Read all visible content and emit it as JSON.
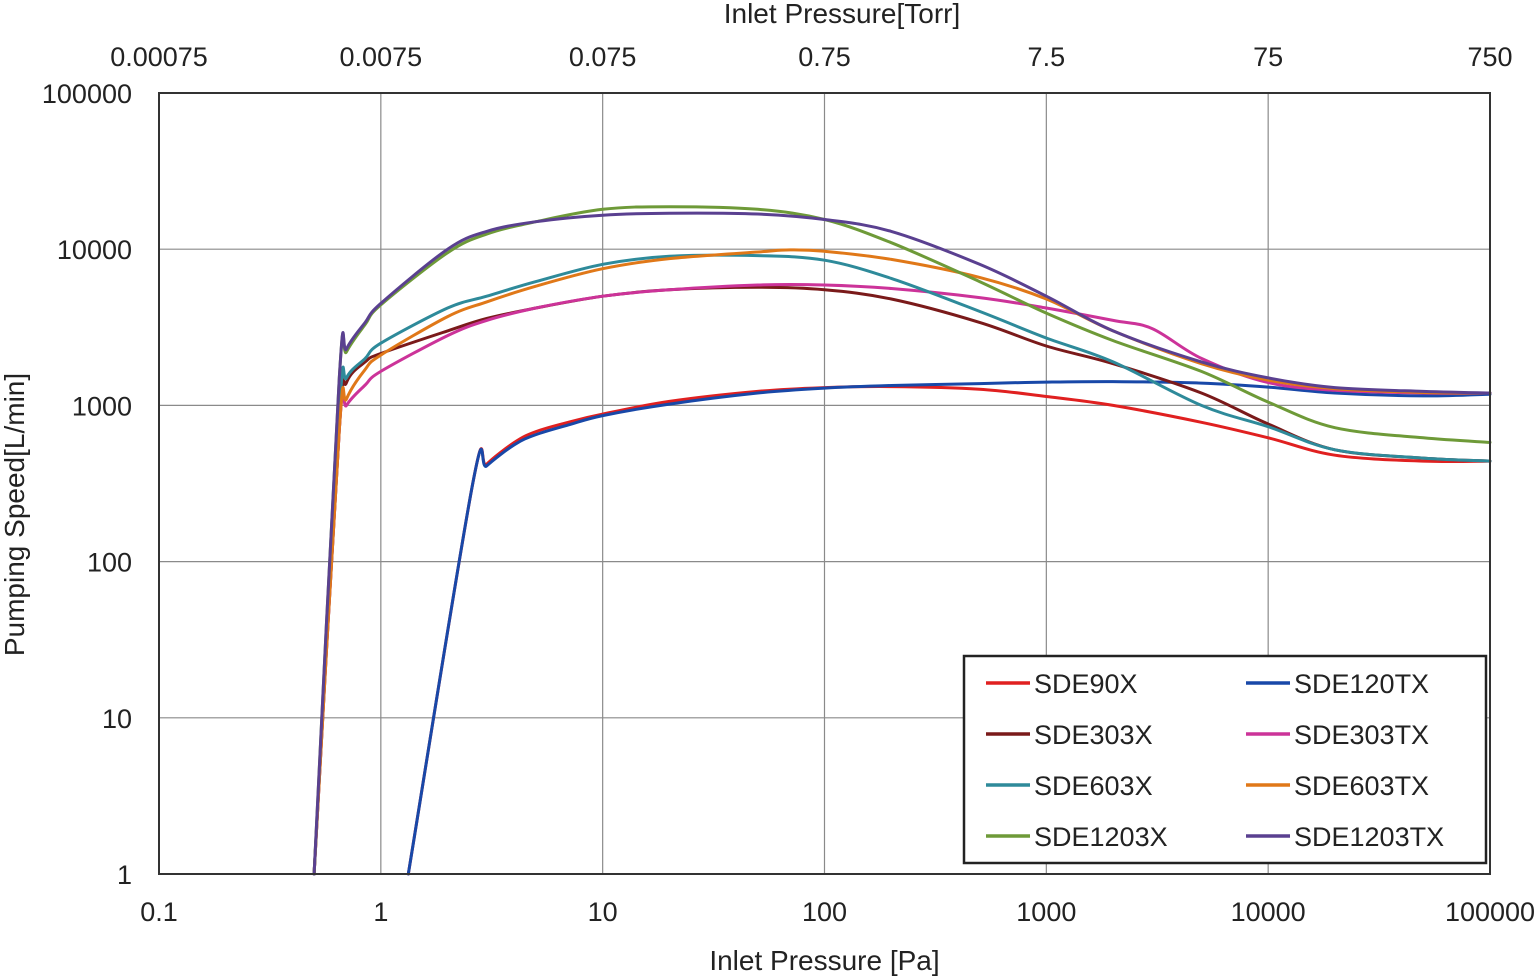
{
  "chart_data": {
    "type": "line",
    "xlabel": "Inlet Pressure [Pa]",
    "x2label": "Inlet Pressure[Torr]",
    "ylabel": "Pumping Speed[L/min]",
    "x_scale": "log",
    "y_scale": "log",
    "xlim": [
      0.1,
      100000
    ],
    "ylim": [
      1,
      100000
    ],
    "grid": true,
    "legend_position": "bottom-right",
    "x_ticks": [
      {
        "value": 0.1,
        "label": "0.1"
      },
      {
        "value": 1,
        "label": "1"
      },
      {
        "value": 10,
        "label": "10"
      },
      {
        "value": 100,
        "label": "100"
      },
      {
        "value": 1000,
        "label": "1000"
      },
      {
        "value": 10000,
        "label": "10000"
      },
      {
        "value": 100000,
        "label": "100000"
      }
    ],
    "x2_ticks": [
      {
        "value": 0.1,
        "label": "0.00075"
      },
      {
        "value": 1,
        "label": "0.0075"
      },
      {
        "value": 10,
        "label": "0.075"
      },
      {
        "value": 100,
        "label": "0.75"
      },
      {
        "value": 1000,
        "label": "7.5"
      },
      {
        "value": 10000,
        "label": "75"
      },
      {
        "value": 100000,
        "label": "750"
      }
    ],
    "y_ticks": [
      {
        "value": 1,
        "label": "1"
      },
      {
        "value": 10,
        "label": "10"
      },
      {
        "value": 100,
        "label": "100"
      },
      {
        "value": 1000,
        "label": "1000"
      },
      {
        "value": 10000,
        "label": "10000"
      },
      {
        "value": 100000,
        "label": "100000"
      }
    ],
    "series": [
      {
        "name": "SDE90X",
        "color": "#e02020",
        "x": [
          1.33,
          2.6,
          3,
          4,
          5,
          7,
          10,
          20,
          50,
          100,
          200,
          500,
          1000,
          2000,
          5000,
          10000,
          20000,
          50000,
          100000
        ],
        "y": [
          1,
          320,
          420,
          580,
          680,
          780,
          880,
          1060,
          1230,
          1300,
          1320,
          1270,
          1140,
          1000,
          780,
          620,
          480,
          440,
          440
        ]
      },
      {
        "name": "SDE120TX",
        "color": "#1848a8",
        "x": [
          1.33,
          2.6,
          3,
          4,
          5,
          7,
          10,
          20,
          50,
          100,
          200,
          500,
          1000,
          2000,
          5000,
          10000,
          20000,
          50000,
          100000
        ],
        "y": [
          1,
          320,
          410,
          560,
          650,
          750,
          860,
          1020,
          1200,
          1290,
          1340,
          1380,
          1410,
          1420,
          1390,
          1310,
          1200,
          1150,
          1180
        ]
      },
      {
        "name": "SDE303X",
        "color": "#7a1a1a",
        "x": [
          0.5,
          0.65,
          0.7,
          0.85,
          1,
          2,
          3,
          5,
          10,
          20,
          50,
          100,
          200,
          500,
          1000,
          2000,
          5000,
          10000,
          20000,
          50000,
          100000
        ],
        "y": [
          1,
          700,
          1400,
          1900,
          2150,
          3000,
          3600,
          4200,
          5000,
          5500,
          5700,
          5500,
          4800,
          3400,
          2400,
          1850,
          1200,
          760,
          520,
          460,
          440
        ]
      },
      {
        "name": "SDE303TX",
        "color": "#cc3399",
        "x": [
          0.5,
          0.65,
          0.7,
          0.85,
          1,
          2,
          3,
          5,
          10,
          20,
          50,
          100,
          200,
          500,
          1000,
          2000,
          3000,
          5000,
          10000,
          20000,
          50000,
          100000
        ],
        "y": [
          1,
          700,
          1000,
          1350,
          1650,
          2800,
          3500,
          4200,
          5000,
          5500,
          5900,
          5900,
          5600,
          4900,
          4200,
          3500,
          3100,
          2000,
          1400,
          1250,
          1200,
          1200
        ]
      },
      {
        "name": "SDE603X",
        "color": "#2e8a9a",
        "x": [
          0.5,
          0.65,
          0.7,
          0.85,
          1,
          2,
          3,
          5,
          10,
          20,
          50,
          100,
          200,
          500,
          1000,
          2000,
          5000,
          10000,
          20000,
          50000,
          100000
        ],
        "y": [
          1,
          900,
          1500,
          2000,
          2500,
          4200,
          5000,
          6200,
          8000,
          9000,
          9100,
          8500,
          6500,
          4000,
          2700,
          1900,
          1000,
          730,
          520,
          460,
          440
        ]
      },
      {
        "name": "SDE603TX",
        "color": "#e07818",
        "x": [
          0.5,
          0.65,
          0.7,
          0.85,
          1,
          2,
          3,
          5,
          10,
          20,
          50,
          70,
          100,
          200,
          500,
          1000,
          2000,
          5000,
          10000,
          20000,
          50000,
          100000
        ],
        "y": [
          1,
          700,
          1100,
          1700,
          2100,
          3700,
          4600,
          5800,
          7500,
          8700,
          9600,
          9900,
          9700,
          8600,
          6600,
          4800,
          3000,
          1850,
          1450,
          1280,
          1210,
          1200
        ]
      },
      {
        "name": "SDE1203X",
        "color": "#6e9a38",
        "x": [
          0.5,
          0.65,
          0.7,
          0.85,
          1,
          2,
          3,
          5,
          10,
          20,
          50,
          100,
          200,
          500,
          1000,
          2000,
          5000,
          10000,
          20000,
          50000,
          100000
        ],
        "y": [
          1,
          1500,
          2200,
          3300,
          4400,
          9500,
          12500,
          15000,
          18000,
          18700,
          18000,
          15500,
          11000,
          6200,
          3900,
          2600,
          1650,
          1050,
          720,
          620,
          580
        ]
      },
      {
        "name": "SDE1203TX",
        "color": "#5a4090",
        "x": [
          0.5,
          0.65,
          0.7,
          0.85,
          1,
          2,
          3,
          5,
          10,
          20,
          50,
          100,
          200,
          500,
          1000,
          2000,
          5000,
          10000,
          20000,
          50000,
          100000
        ],
        "y": [
          1,
          1500,
          2300,
          3400,
          4500,
          10000,
          13000,
          15000,
          16500,
          17000,
          16800,
          15500,
          13000,
          8000,
          5000,
          3000,
          1900,
          1500,
          1300,
          1230,
          1200
        ]
      }
    ]
  }
}
